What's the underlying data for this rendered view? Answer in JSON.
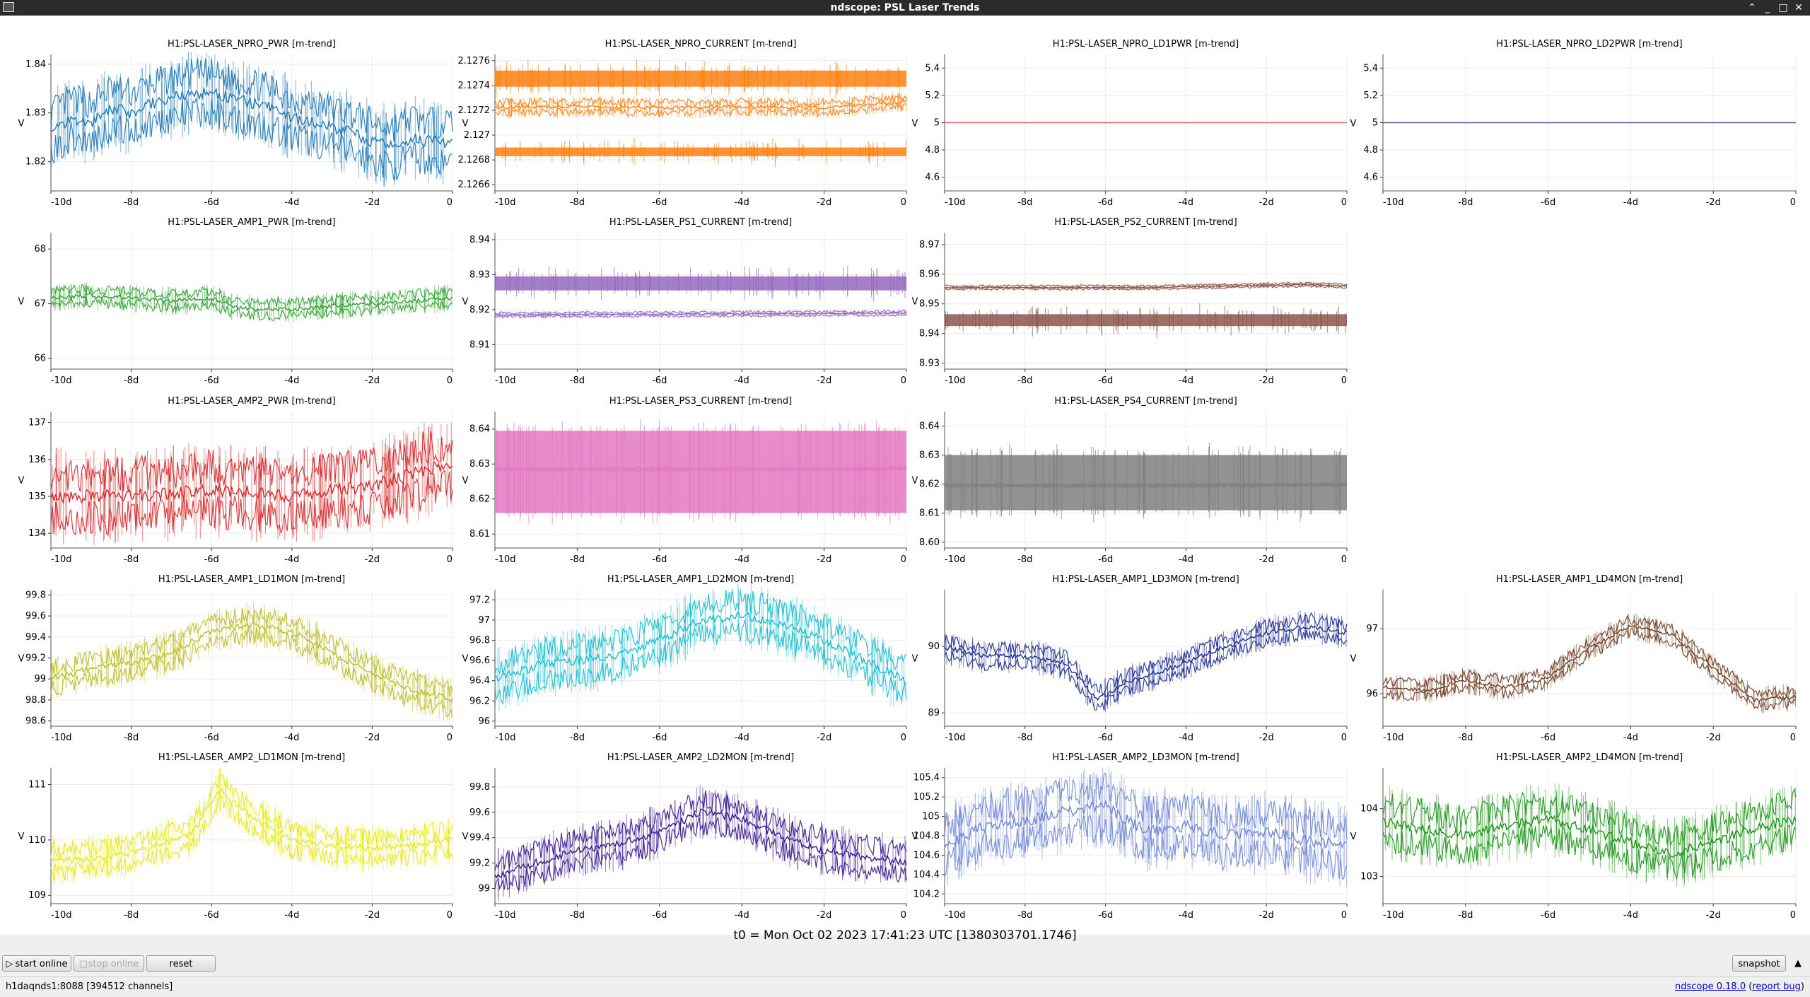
{
  "window": {
    "title": "ndscope: PSL Laser Trends"
  },
  "plots": [
    {
      "id": "npro-pwr",
      "title": "H1:PSL-LASER_NPRO_PWR [m-trend]",
      "color": "#1f77b4",
      "ylabel": "V",
      "xticks": [
        "-10d",
        "-8d",
        "-6d",
        "-4d",
        "-2d",
        "0"
      ],
      "yticks": [
        "1.84",
        "1.83",
        "1.82"
      ],
      "ylim": [
        1.814,
        1.842
      ],
      "chart_data": {
        "type": "line",
        "x_range_days": [
          -10,
          0
        ],
        "trend": [
          [
            -10,
            1.826
          ],
          [
            -9.5,
            1.829
          ],
          [
            -9,
            1.828
          ],
          [
            -8.5,
            1.831
          ],
          [
            -8,
            1.83
          ],
          [
            -7.5,
            1.832
          ],
          [
            -7,
            1.833
          ],
          [
            -6.5,
            1.834
          ],
          [
            -6,
            1.834
          ],
          [
            -5.5,
            1.833
          ],
          [
            -5,
            1.832
          ],
          [
            -4.5,
            1.831
          ],
          [
            -4,
            1.829
          ],
          [
            -3.5,
            1.828
          ],
          [
            -3,
            1.827
          ],
          [
            -2.5,
            1.826
          ],
          [
            -2,
            1.824
          ],
          [
            -1.5,
            1.823
          ],
          [
            -1,
            1.825
          ],
          [
            -0.5,
            1.824
          ],
          [
            0,
            1.824
          ]
        ],
        "spread": 0.004
      }
    },
    {
      "id": "npro-current",
      "title": "H1:PSL-LASER_NPRO_CURRENT [m-trend]",
      "color": "#ff7f0e",
      "ylabel": "V",
      "xticks": [
        "-10d",
        "-8d",
        "-6d",
        "-4d",
        "-2d",
        "0"
      ],
      "yticks": [
        "2.1276",
        "2.1274",
        "2.1272",
        "2.127",
        "2.1268",
        "2.1266"
      ],
      "ylim": [
        2.12655,
        2.12765
      ],
      "chart_data": {
        "type": "line",
        "x_range_days": [
          -10,
          0
        ],
        "bands": [
          2.12752,
          2.12739,
          2.12683,
          2.1269
        ],
        "trend": [
          [
            -10,
            2.12722
          ],
          [
            -8,
            2.12723
          ],
          [
            -6,
            2.12722
          ],
          [
            -4,
            2.12723
          ],
          [
            -2,
            2.12722
          ],
          [
            0,
            2.12727
          ]
        ],
        "spread": 4e-05
      }
    },
    {
      "id": "npro-ld1pwr",
      "title": "H1:PSL-LASER_NPRO_LD1PWR [m-trend]",
      "color": "#e06666",
      "ylabel": "V",
      "xticks": [
        "-10d",
        "-8d",
        "-6d",
        "-4d",
        "-2d",
        "0"
      ],
      "yticks": [
        "5.4",
        "5.2",
        "5",
        "4.8",
        "4.6"
      ],
      "ylim": [
        4.5,
        5.5
      ],
      "chart_data": {
        "type": "line",
        "x_range_days": [
          -10,
          0
        ],
        "trend": [
          [
            -10,
            5
          ],
          [
            0,
            5
          ]
        ],
        "spread": 0
      }
    },
    {
      "id": "npro-ld2pwr",
      "title": "H1:PSL-LASER_NPRO_LD2PWR [m-trend]",
      "color": "#5a5a9e",
      "ylabel": "V",
      "xticks": [
        "-10d",
        "-8d",
        "-6d",
        "-4d",
        "-2d",
        "0"
      ],
      "yticks": [
        "5.4",
        "5.2",
        "5",
        "4.8",
        "4.6"
      ],
      "ylim": [
        4.5,
        5.5
      ],
      "chart_data": {
        "type": "line",
        "x_range_days": [
          -10,
          0
        ],
        "trend": [
          [
            -10,
            5
          ],
          [
            0,
            5
          ]
        ],
        "spread": 0
      }
    },
    {
      "id": "amp1-pwr",
      "title": "H1:PSL-LASER_AMP1_PWR [m-trend]",
      "color": "#2ca02c",
      "ylabel": "V",
      "xticks": [
        "-10d",
        "-8d",
        "-6d",
        "-4d",
        "-2d",
        "0"
      ],
      "yticks": [
        "68",
        "67",
        "66"
      ],
      "ylim": [
        65.8,
        68.3
      ],
      "chart_data": {
        "type": "line",
        "x_range_days": [
          -10,
          0
        ],
        "trend": [
          [
            -10,
            67.1
          ],
          [
            -9,
            67.15
          ],
          [
            -8,
            67.1
          ],
          [
            -7,
            67.05
          ],
          [
            -6,
            67.1
          ],
          [
            -5.5,
            66.95
          ],
          [
            -5,
            66.9
          ],
          [
            -4,
            66.9
          ],
          [
            -3,
            66.95
          ],
          [
            -2,
            67.0
          ],
          [
            -1,
            67.05
          ],
          [
            0,
            67.1
          ]
        ],
        "spread": 0.12
      }
    },
    {
      "id": "ps1-current",
      "title": "H1:PSL-LASER_PS1_CURRENT [m-trend]",
      "color": "#9467bd",
      "ylabel": "V",
      "xticks": [
        "-10d",
        "-8d",
        "-6d",
        "-4d",
        "-2d",
        "0"
      ],
      "yticks": [
        "8.94",
        "8.93",
        "8.92",
        "8.91"
      ],
      "ylim": [
        8.903,
        8.942
      ],
      "chart_data": {
        "type": "line",
        "x_range_days": [
          -10,
          0
        ],
        "bands": [
          8.9295,
          8.9255
        ],
        "trend": [
          [
            -10,
            8.9185
          ],
          [
            -5,
            8.9187
          ],
          [
            0,
            8.919
          ]
        ],
        "spread": 0.0005
      }
    },
    {
      "id": "ps2-current",
      "title": "H1:PSL-LASER_PS2_CURRENT [m-trend]",
      "color": "#8c564b",
      "ylabel": "V",
      "xticks": [
        "-10d",
        "-8d",
        "-6d",
        "-4d",
        "-2d",
        "0"
      ],
      "yticks": [
        "8.97",
        "8.96",
        "8.95",
        "8.94",
        "8.93"
      ],
      "ylim": [
        8.928,
        8.974
      ],
      "chart_data": {
        "type": "line",
        "x_range_days": [
          -10,
          0
        ],
        "bands": [
          8.9465,
          8.9425
        ],
        "trend": [
          [
            -10,
            8.9555
          ],
          [
            -5,
            8.9555
          ],
          [
            -1,
            8.9565
          ],
          [
            0,
            8.956
          ]
        ],
        "spread": 0.0005
      }
    },
    {
      "id": "amp2-pwr",
      "title": "H1:PSL-LASER_AMP2_PWR [m-trend]",
      "color": "#d62728",
      "ylabel": "V",
      "xticks": [
        "-10d",
        "-8d",
        "-6d",
        "-4d",
        "-2d",
        "0"
      ],
      "yticks": [
        "137",
        "136",
        "135",
        "134"
      ],
      "ylim": [
        133.6,
        137.3
      ],
      "chart_data": {
        "type": "line",
        "x_range_days": [
          -10,
          0
        ],
        "trend": [
          [
            -10,
            135.0
          ],
          [
            -8,
            135.0
          ],
          [
            -6,
            135.2
          ],
          [
            -4,
            135.0
          ],
          [
            -2,
            135.3
          ],
          [
            0,
            135.9
          ]
        ],
        "spread": 0.6
      }
    },
    {
      "id": "ps3-current",
      "title": "H1:PSL-LASER_PS3_CURRENT [m-trend]",
      "color": "#e377c2",
      "ylabel": "V",
      "xticks": [
        "-10d",
        "-8d",
        "-6d",
        "-4d",
        "-2d",
        "0"
      ],
      "yticks": [
        "8.64",
        "8.63",
        "8.62",
        "8.61"
      ],
      "ylim": [
        8.606,
        8.645
      ],
      "chart_data": {
        "type": "line",
        "x_range_days": [
          -10,
          0
        ],
        "bands": [
          8.6395,
          8.616
        ],
        "trend": [
          [
            -10,
            8.6285
          ],
          [
            -5,
            8.6285
          ],
          [
            0,
            8.6287
          ]
        ],
        "spread": 0.0004
      }
    },
    {
      "id": "ps4-current",
      "title": "H1:PSL-LASER_PS4_CURRENT [m-trend]",
      "color": "#7f7f7f",
      "ylabel": "V",
      "xticks": [
        "-10d",
        "-8d",
        "-6d",
        "-4d",
        "-2d",
        "0"
      ],
      "yticks": [
        "8.64",
        "8.63",
        "8.62",
        "8.61",
        "8.60"
      ],
      "ylim": [
        8.598,
        8.645
      ],
      "chart_data": {
        "type": "line",
        "x_range_days": [
          -10,
          0
        ],
        "bands": [
          8.63,
          8.611
        ],
        "trend": [
          [
            -10,
            8.6195
          ],
          [
            -5,
            8.6195
          ],
          [
            0,
            8.6198
          ]
        ],
        "spread": 0.0004
      }
    },
    {
      "id": "amp1-ld1mon",
      "title": "H1:PSL-LASER_AMP1_LD1MON [m-trend]",
      "color": "#bcbd22",
      "ylabel": "V",
      "xticks": [
        "-10d",
        "-8d",
        "-6d",
        "-4d",
        "-2d",
        "0"
      ],
      "yticks": [
        "99.8",
        "99.6",
        "99.4",
        "99.2",
        "99",
        "98.8",
        "98.6"
      ],
      "ylim": [
        98.55,
        99.85
      ],
      "chart_data": {
        "type": "line",
        "x_range_days": [
          -10,
          0
        ],
        "trend": [
          [
            -10,
            99.0
          ],
          [
            -9,
            99.1
          ],
          [
            -8,
            99.15
          ],
          [
            -7,
            99.25
          ],
          [
            -6,
            99.45
          ],
          [
            -5,
            99.52
          ],
          [
            -4,
            99.45
          ],
          [
            -3,
            99.25
          ],
          [
            -2,
            99.05
          ],
          [
            -1,
            98.9
          ],
          [
            0,
            98.8
          ]
        ],
        "spread": 0.1
      }
    },
    {
      "id": "amp1-ld2mon",
      "title": "H1:PSL-LASER_AMP1_LD2MON [m-trend]",
      "color": "#17becf",
      "ylabel": "V",
      "xticks": [
        "-10d",
        "-8d",
        "-6d",
        "-4d",
        "-2d",
        "0"
      ],
      "yticks": [
        "97.2",
        "97",
        "96.8",
        "96.6",
        "96.4",
        "96.2",
        "96"
      ],
      "ylim": [
        95.95,
        97.3
      ],
      "chart_data": {
        "type": "line",
        "x_range_days": [
          -10,
          0
        ],
        "trend": [
          [
            -10,
            96.4
          ],
          [
            -9,
            96.55
          ],
          [
            -8,
            96.6
          ],
          [
            -7,
            96.65
          ],
          [
            -6,
            96.8
          ],
          [
            -5,
            97.0
          ],
          [
            -4,
            97.05
          ],
          [
            -3,
            96.95
          ],
          [
            -2,
            96.8
          ],
          [
            -1,
            96.6
          ],
          [
            0,
            96.4
          ]
        ],
        "spread": 0.15
      }
    },
    {
      "id": "amp1-ld3mon",
      "title": "H1:PSL-LASER_AMP1_LD3MON [m-trend]",
      "color": "#1c2a8f",
      "ylabel": "V",
      "xticks": [
        "-10d",
        "-8d",
        "-6d",
        "-4d",
        "-2d",
        "0"
      ],
      "yticks": [
        "90",
        "89"
      ],
      "ylim": [
        88.8,
        90.85
      ],
      "chart_data": {
        "type": "line",
        "x_range_days": [
          -10,
          0
        ],
        "trend": [
          [
            -10,
            89.98
          ],
          [
            -9,
            89.85
          ],
          [
            -8,
            89.85
          ],
          [
            -7,
            89.75
          ],
          [
            -6.2,
            89.2
          ],
          [
            -5.5,
            89.45
          ],
          [
            -4,
            89.75
          ],
          [
            -3,
            90.0
          ],
          [
            -2,
            90.2
          ],
          [
            -1,
            90.3
          ],
          [
            0,
            90.2
          ]
        ],
        "spread": 0.12
      }
    },
    {
      "id": "amp1-ld4mon",
      "title": "H1:PSL-LASER_AMP1_LD4MON [m-trend]",
      "color": "#6b3a1e",
      "ylabel": "V",
      "xticks": [
        "-10d",
        "-8d",
        "-6d",
        "-4d",
        "-2d",
        "0"
      ],
      "yticks": [
        "97",
        "96"
      ],
      "ylim": [
        95.5,
        97.6
      ],
      "chart_data": {
        "type": "line",
        "x_range_days": [
          -10,
          0
        ],
        "trend": [
          [
            -10,
            96.1
          ],
          [
            -9,
            96.05
          ],
          [
            -8,
            96.2
          ],
          [
            -7,
            96.1
          ],
          [
            -6,
            96.25
          ],
          [
            -5,
            96.7
          ],
          [
            -4,
            97.05
          ],
          [
            -3,
            96.9
          ],
          [
            -2,
            96.4
          ],
          [
            -1,
            95.9
          ],
          [
            0,
            95.95
          ]
        ],
        "spread": 0.1
      }
    },
    {
      "id": "amp2-ld1mon",
      "title": "H1:PSL-LASER_AMP2_LD1MON [m-trend]",
      "color": "#e8e815",
      "ylabel": "V",
      "xticks": [
        "-10d",
        "-8d",
        "-6d",
        "-4d",
        "-2d",
        "0"
      ],
      "yticks": [
        "111",
        "110",
        "109"
      ],
      "ylim": [
        108.85,
        111.3
      ],
      "chart_data": {
        "type": "line",
        "x_range_days": [
          -10,
          0
        ],
        "trend": [
          [
            -10,
            109.6
          ],
          [
            -8,
            109.75
          ],
          [
            -6.5,
            110.1
          ],
          [
            -5.8,
            110.9
          ],
          [
            -5,
            110.4
          ],
          [
            -4,
            110.0
          ],
          [
            -3,
            109.9
          ],
          [
            -2,
            109.85
          ],
          [
            -1,
            109.9
          ],
          [
            0,
            110.0
          ]
        ],
        "spread": 0.2
      }
    },
    {
      "id": "amp2-ld2mon",
      "title": "H1:PSL-LASER_AMP2_LD2MON [m-trend]",
      "color": "#3a168f",
      "ylabel": "V",
      "xticks": [
        "-10d",
        "-8d",
        "-6d",
        "-4d",
        "-2d",
        "0"
      ],
      "yticks": [
        "99.8",
        "99.6",
        "99.4",
        "99.2",
        "99"
      ],
      "ylim": [
        98.88,
        99.95
      ],
      "chart_data": {
        "type": "line",
        "x_range_days": [
          -10,
          0
        ],
        "trend": [
          [
            -10,
            99.1
          ],
          [
            -9,
            99.2
          ],
          [
            -8,
            99.3
          ],
          [
            -7,
            99.35
          ],
          [
            -6,
            99.45
          ],
          [
            -5,
            99.6
          ],
          [
            -4,
            99.55
          ],
          [
            -3,
            99.4
          ],
          [
            -2,
            99.3
          ],
          [
            -1,
            99.25
          ],
          [
            0,
            99.2
          ]
        ],
        "spread": 0.1
      }
    },
    {
      "id": "amp2-ld3mon",
      "title": "H1:PSL-LASER_AMP2_LD3MON [m-trend]",
      "color": "#6f86d6",
      "ylabel": "V",
      "xticks": [
        "-10d",
        "-8d",
        "-6d",
        "-4d",
        "-2d",
        "0"
      ],
      "yticks": [
        "105.4",
        "105.2",
        "105",
        "104.8",
        "104.6",
        "104.4",
        "104.2"
      ],
      "ylim": [
        104.1,
        105.5
      ],
      "chart_data": {
        "type": "line",
        "x_range_days": [
          -10,
          0
        ],
        "trend": [
          [
            -10,
            104.7
          ],
          [
            -9,
            104.9
          ],
          [
            -8,
            104.95
          ],
          [
            -7,
            105.05
          ],
          [
            -6,
            105.1
          ],
          [
            -5,
            104.85
          ],
          [
            -4,
            104.9
          ],
          [
            -3,
            104.8
          ],
          [
            -2,
            104.85
          ],
          [
            -1,
            104.75
          ],
          [
            0,
            104.7
          ]
        ],
        "spread": 0.2
      }
    },
    {
      "id": "amp2-ld4mon",
      "title": "H1:PSL-LASER_AMP2_LD4MON [m-trend]",
      "color": "#1b9416",
      "ylabel": "V",
      "xticks": [
        "-10d",
        "-8d",
        "-6d",
        "-4d",
        "-2d",
        "0"
      ],
      "yticks": [
        "104",
        "103"
      ],
      "ylim": [
        102.6,
        104.6
      ],
      "chart_data": {
        "type": "line",
        "x_range_days": [
          -10,
          0
        ],
        "trend": [
          [
            -10,
            103.8
          ],
          [
            -9,
            103.7
          ],
          [
            -8,
            103.6
          ],
          [
            -7,
            103.75
          ],
          [
            -6,
            103.85
          ],
          [
            -5,
            103.7
          ],
          [
            -4,
            103.5
          ],
          [
            -3,
            103.35
          ],
          [
            -2,
            103.5
          ],
          [
            -1,
            103.7
          ],
          [
            0,
            103.85
          ]
        ],
        "spread": 0.25
      }
    }
  ],
  "t0": "t0 = Mon Oct 02 2023 17:41:23 UTC [1380303701.1746]",
  "controls": {
    "start_online": "start online",
    "stop_online": "stop online",
    "reset": "reset",
    "snapshot": "snapshot"
  },
  "status": {
    "server": "h1daqnds1:8088  [394512 channels]",
    "version_link": "ndscope 0.18.0",
    "report_link": "report bug"
  }
}
